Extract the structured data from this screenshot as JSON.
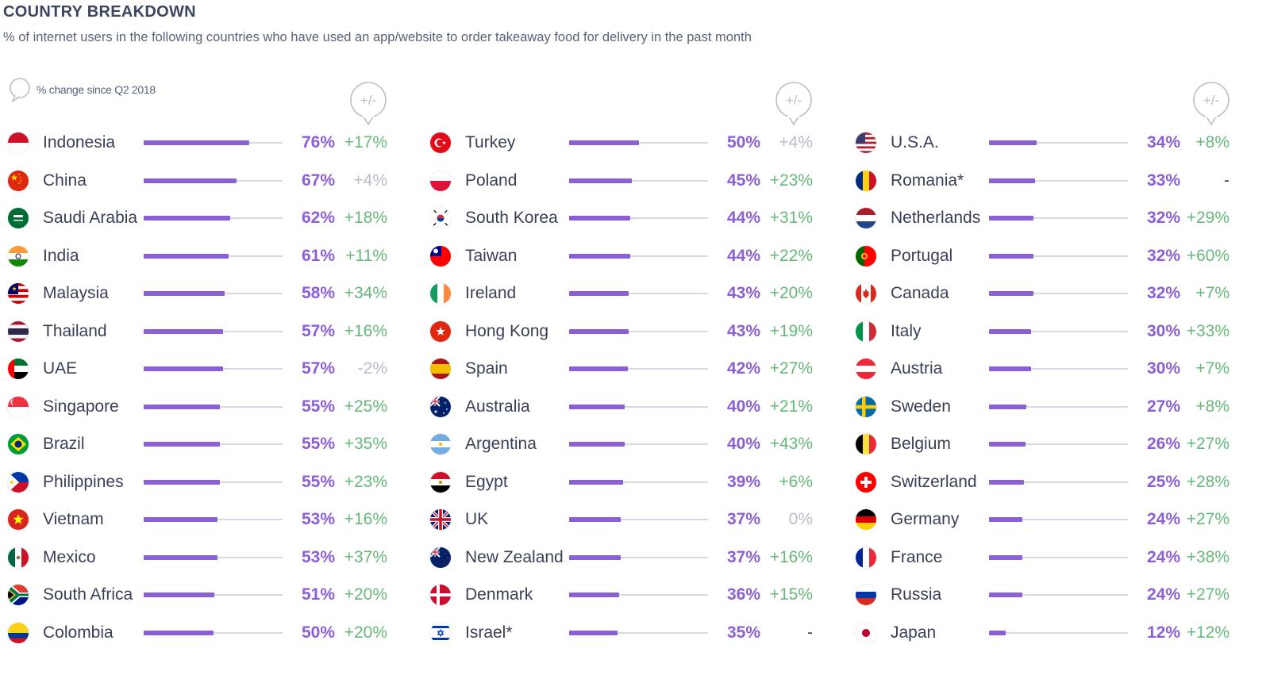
{
  "header": {
    "title": "COUNTRY BREAKDOWN",
    "subtitle": "% of internet users in the following countries who have used an app/website to order takeaway food for delivery in the past month"
  },
  "legend": {
    "label": "% change since Q2 2018"
  },
  "column_header_label": "+/-",
  "colors": {
    "bar": "#8b5fd6",
    "track": "#d6d9e2",
    "positive_change": "#67b97a",
    "neutral_change": "#b8bccb",
    "header_text": "#3b4560"
  },
  "chart_data": {
    "type": "bar",
    "orientation": "horizontal",
    "xlim": [
      0,
      100
    ],
    "unit": "%",
    "columns": [
      {
        "rows": [
          {
            "country": "Indonesia",
            "value": 76,
            "value_label": "76%",
            "change": "+17%",
            "change_style": "positive"
          },
          {
            "country": "China",
            "value": 67,
            "value_label": "67%",
            "change": "+4%",
            "change_style": "neutral"
          },
          {
            "country": "Saudi Arabia",
            "value": 62,
            "value_label": "62%",
            "change": "+18%",
            "change_style": "positive"
          },
          {
            "country": "India",
            "value": 61,
            "value_label": "61%",
            "change": "+11%",
            "change_style": "positive"
          },
          {
            "country": "Malaysia",
            "value": 58,
            "value_label": "58%",
            "change": "+34%",
            "change_style": "positive"
          },
          {
            "country": "Thailand",
            "value": 57,
            "value_label": "57%",
            "change": "+16%",
            "change_style": "positive"
          },
          {
            "country": "UAE",
            "value": 57,
            "value_label": "57%",
            "change": "-2%",
            "change_style": "neutral"
          },
          {
            "country": "Singapore",
            "value": 55,
            "value_label": "55%",
            "change": "+25%",
            "change_style": "positive"
          },
          {
            "country": "Brazil",
            "value": 55,
            "value_label": "55%",
            "change": "+35%",
            "change_style": "positive"
          },
          {
            "country": "Philippines",
            "value": 55,
            "value_label": "55%",
            "change": "+23%",
            "change_style": "positive"
          },
          {
            "country": "Vietnam",
            "value": 53,
            "value_label": "53%",
            "change": "+16%",
            "change_style": "positive"
          },
          {
            "country": "Mexico",
            "value": 53,
            "value_label": "53%",
            "change": "+37%",
            "change_style": "positive"
          },
          {
            "country": "South Africa",
            "value": 51,
            "value_label": "51%",
            "change": "+20%",
            "change_style": "positive"
          },
          {
            "country": "Colombia",
            "value": 50,
            "value_label": "50%",
            "change": "+20%",
            "change_style": "positive"
          }
        ]
      },
      {
        "rows": [
          {
            "country": "Turkey",
            "value": 50,
            "value_label": "50%",
            "change": "+4%",
            "change_style": "neutral"
          },
          {
            "country": "Poland",
            "value": 45,
            "value_label": "45%",
            "change": "+23%",
            "change_style": "positive"
          },
          {
            "country": "South Korea",
            "value": 44,
            "value_label": "44%",
            "change": "+31%",
            "change_style": "positive"
          },
          {
            "country": "Taiwan",
            "value": 44,
            "value_label": "44%",
            "change": "+22%",
            "change_style": "positive"
          },
          {
            "country": "Ireland",
            "value": 43,
            "value_label": "43%",
            "change": "+20%",
            "change_style": "positive"
          },
          {
            "country": "Hong Kong",
            "value": 43,
            "value_label": "43%",
            "change": "+19%",
            "change_style": "positive"
          },
          {
            "country": "Spain",
            "value": 42,
            "value_label": "42%",
            "change": "+27%",
            "change_style": "positive"
          },
          {
            "country": "Australia",
            "value": 40,
            "value_label": "40%",
            "change": "+21%",
            "change_style": "positive"
          },
          {
            "country": "Argentina",
            "value": 40,
            "value_label": "40%",
            "change": "+43%",
            "change_style": "positive"
          },
          {
            "country": "Egypt",
            "value": 39,
            "value_label": "39%",
            "change": "+6%",
            "change_style": "positive"
          },
          {
            "country": "UK",
            "value": 37,
            "value_label": "37%",
            "change": "0%",
            "change_style": "neutral"
          },
          {
            "country": "New Zealand",
            "value": 37,
            "value_label": "37%",
            "change": "+16%",
            "change_style": "positive"
          },
          {
            "country": "Denmark",
            "value": 36,
            "value_label": "36%",
            "change": "+15%",
            "change_style": "positive"
          },
          {
            "country": "Israel*",
            "value": 35,
            "value_label": "35%",
            "change": "-",
            "change_style": "dash"
          }
        ]
      },
      {
        "rows": [
          {
            "country": "U.S.A.",
            "value": 34,
            "value_label": "34%",
            "change": "+8%",
            "change_style": "positive"
          },
          {
            "country": "Romania*",
            "value": 33,
            "value_label": "33%",
            "change": "-",
            "change_style": "dash"
          },
          {
            "country": "Netherlands",
            "value": 32,
            "value_label": "32%",
            "change": "+29%",
            "change_style": "positive"
          },
          {
            "country": "Portugal",
            "value": 32,
            "value_label": "32%",
            "change": "+60%",
            "change_style": "positive"
          },
          {
            "country": "Canada",
            "value": 32,
            "value_label": "32%",
            "change": "+7%",
            "change_style": "positive"
          },
          {
            "country": "Italy",
            "value": 30,
            "value_label": "30%",
            "change": "+33%",
            "change_style": "positive"
          },
          {
            "country": "Austria",
            "value": 30,
            "value_label": "30%",
            "change": "+7%",
            "change_style": "positive"
          },
          {
            "country": "Sweden",
            "value": 27,
            "value_label": "27%",
            "change": "+8%",
            "change_style": "positive"
          },
          {
            "country": "Belgium",
            "value": 26,
            "value_label": "26%",
            "change": "+27%",
            "change_style": "positive"
          },
          {
            "country": "Switzerland",
            "value": 25,
            "value_label": "25%",
            "change": "+28%",
            "change_style": "positive"
          },
          {
            "country": "Germany",
            "value": 24,
            "value_label": "24%",
            "change": "+27%",
            "change_style": "positive"
          },
          {
            "country": "France",
            "value": 24,
            "value_label": "24%",
            "change": "+38%",
            "change_style": "positive"
          },
          {
            "country": "Russia",
            "value": 24,
            "value_label": "24%",
            "change": "+27%",
            "change_style": "positive"
          },
          {
            "country": "Japan",
            "value": 12,
            "value_label": "12%",
            "change": "+12%",
            "change_style": "positive"
          }
        ]
      }
    ]
  }
}
